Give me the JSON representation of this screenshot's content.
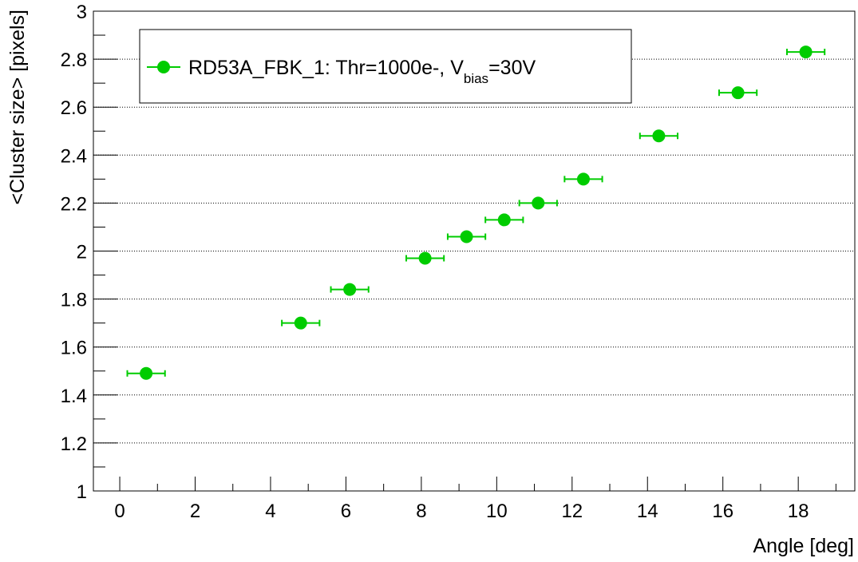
{
  "chart_data": {
    "type": "scatter",
    "xlabel": "Angle [deg]",
    "ylabel": "<Cluster size> [pixels]",
    "xlim": [
      -0.7,
      19.5
    ],
    "ylim": [
      1,
      3
    ],
    "grid": {
      "x": false,
      "y": true
    },
    "x_ticks": [
      0,
      2,
      4,
      6,
      8,
      10,
      12,
      14,
      16,
      18
    ],
    "y_ticks": [
      1,
      1.2,
      1.4,
      1.6,
      1.8,
      2,
      2.2,
      2.4,
      2.6,
      2.8,
      3
    ],
    "x_tick_labels": [
      "0",
      "2",
      "4",
      "6",
      "8",
      "10",
      "12",
      "14",
      "16",
      "18"
    ],
    "y_tick_labels": [
      "1",
      "1.2",
      "1.4",
      "1.6",
      "1.8",
      "2",
      "2.2",
      "2.4",
      "2.6",
      "2.8",
      "3"
    ],
    "legend_placement": "top-left",
    "series": [
      {
        "name": "RD53A_FBK_1: Thr=1000e-, V_bias=30V",
        "legend": {
          "main": "RD53A_FBK_1: Thr=1000e-, V",
          "sub": "bias",
          "tail": "=30V"
        },
        "color": "#00cc00",
        "points": [
          {
            "x": 0.7,
            "y": 1.49,
            "xerr": 0.5
          },
          {
            "x": 4.8,
            "y": 1.7,
            "xerr": 0.5
          },
          {
            "x": 6.1,
            "y": 1.84,
            "xerr": 0.5
          },
          {
            "x": 8.1,
            "y": 1.97,
            "xerr": 0.5
          },
          {
            "x": 9.2,
            "y": 2.06,
            "xerr": 0.5
          },
          {
            "x": 10.2,
            "y": 2.13,
            "xerr": 0.5
          },
          {
            "x": 11.1,
            "y": 2.2,
            "xerr": 0.5
          },
          {
            "x": 12.3,
            "y": 2.3,
            "xerr": 0.5
          },
          {
            "x": 14.3,
            "y": 2.48,
            "xerr": 0.5
          },
          {
            "x": 16.4,
            "y": 2.66,
            "xerr": 0.5
          },
          {
            "x": 18.2,
            "y": 2.83,
            "xerr": 0.5
          }
        ]
      }
    ]
  }
}
